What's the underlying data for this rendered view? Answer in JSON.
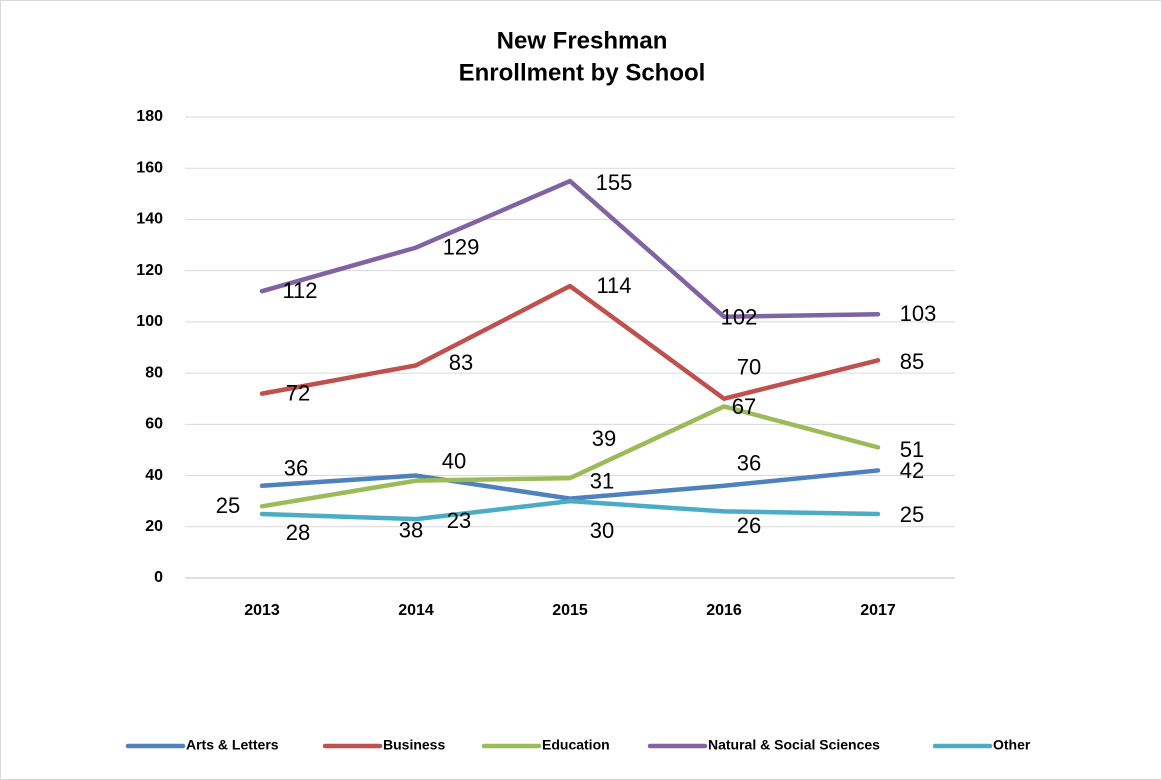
{
  "chart_data": {
    "type": "line",
    "title": [
      "New Freshman",
      "Enrollment by  School"
    ],
    "categories": [
      "2013",
      "2014",
      "2015",
      "2016",
      "2017"
    ],
    "series": [
      {
        "name": "Arts & Letters",
        "color": "#4f81bd",
        "values": [
          36,
          40,
          31,
          36,
          42
        ]
      },
      {
        "name": "Business",
        "color": "#c0504d",
        "values": [
          72,
          83,
          114,
          70,
          85
        ]
      },
      {
        "name": "Education",
        "color": "#9bbb59",
        "values": [
          28,
          38,
          39,
          67,
          51
        ]
      },
      {
        "name": "Natural & Social Sciences",
        "color": "#8064a2",
        "values": [
          112,
          129,
          155,
          102,
          103
        ]
      },
      {
        "name": "Other",
        "color": "#4bacc6",
        "values": [
          25,
          23,
          30,
          26,
          25
        ]
      }
    ],
    "ylim": [
      0,
      180
    ],
    "yticks": [
      0,
      20,
      40,
      60,
      80,
      100,
      120,
      140,
      160,
      180
    ],
    "grid": true,
    "legend": "bottom"
  }
}
